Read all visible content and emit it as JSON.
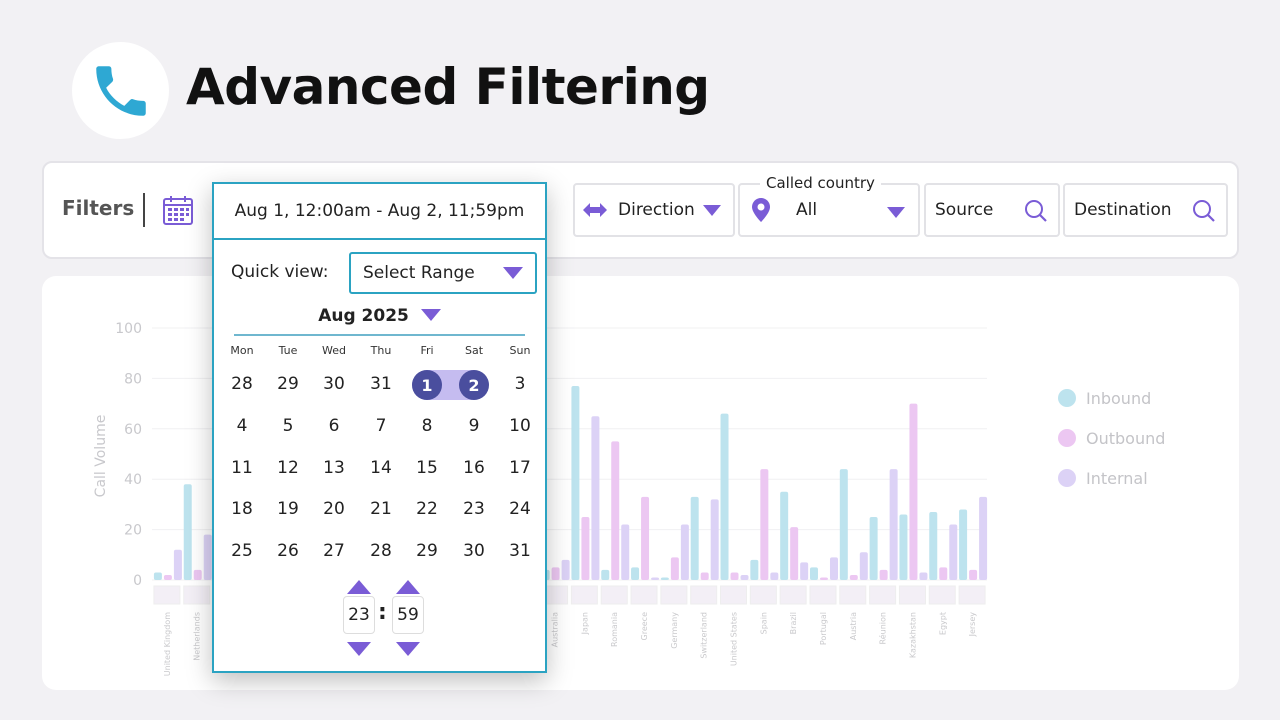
{
  "header": {
    "title": "Advanced Filtering"
  },
  "filters": {
    "label": "Filters",
    "direction": "Direction",
    "country_legend": "Called country",
    "country_value": "All",
    "source_placeholder": "Source",
    "destination_placeholder": "Destination"
  },
  "datepicker": {
    "range_text": "Aug 1, 12:00am - Aug 2, 11;59pm",
    "quick_view_label": "Quick view:",
    "quick_view_value": "Select Range",
    "month": "Aug 2025",
    "weekdays": [
      "Mon",
      "Tue",
      "Wed",
      "Thu",
      "Fri",
      "Sat",
      "Sun"
    ],
    "weeks": [
      [
        "28",
        "29",
        "30",
        "31",
        "1",
        "2",
        "3"
      ],
      [
        "4",
        "5",
        "6",
        "7",
        "8",
        "9",
        "10"
      ],
      [
        "11",
        "12",
        "13",
        "14",
        "15",
        "16",
        "17"
      ],
      [
        "18",
        "19",
        "20",
        "21",
        "22",
        "23",
        "24"
      ],
      [
        "25",
        "26",
        "27",
        "28",
        "29",
        "30",
        "31"
      ]
    ],
    "selected_start": "1",
    "selected_end": "2",
    "hour": "23",
    "minute": "59"
  },
  "colors": {
    "accent": "#7a5cd6",
    "border_accent": "#2ba3c2",
    "selected": "#4a4e9e",
    "inbound": "#bde3ee",
    "outbound": "#ecc7f2",
    "internal": "#dcd2f6"
  },
  "chart_data": {
    "type": "bar",
    "ylabel": "Call Volume",
    "ylim": [
      0,
      100
    ],
    "yticks": [
      "0",
      "20",
      "40",
      "60",
      "80",
      "100"
    ],
    "legend_position": "right",
    "categories": [
      "United Kingdom",
      "Netherlands",
      "",
      "",
      "",
      "",
      "",
      "",
      "",
      "",
      "",
      "",
      "",
      "Australia",
      "Japan",
      "Romania",
      "Greece",
      "Germany",
      "Switzerland",
      "United States",
      "Spain",
      "Brazil",
      "Portugal",
      "Austria",
      "Réunion",
      "Kazakhstan",
      "Egypt",
      "Jersey"
    ],
    "series": [
      {
        "name": "Inbound",
        "color": "#bde3ee",
        "values": [
          3,
          38,
          0,
          0,
          0,
          0,
          0,
          0,
          0,
          0,
          0,
          0,
          0,
          4,
          77,
          4,
          5,
          1,
          33,
          66,
          8,
          35,
          5,
          44,
          25,
          26,
          27,
          28
        ]
      },
      {
        "name": "Outbound",
        "color": "#ecc7f2",
        "values": [
          2,
          4,
          0,
          0,
          0,
          0,
          0,
          0,
          0,
          0,
          0,
          0,
          0,
          5,
          25,
          55,
          33,
          9,
          3,
          3,
          44,
          21,
          1,
          2,
          4,
          70,
          5,
          4
        ]
      },
      {
        "name": "Internal",
        "color": "#dcd2f6",
        "values": [
          12,
          18,
          0,
          0,
          0,
          0,
          0,
          0,
          0,
          0,
          0,
          0,
          0,
          8,
          65,
          22,
          1,
          22,
          32,
          2,
          3,
          7,
          9,
          11,
          44,
          3,
          22,
          33
        ]
      }
    ]
  }
}
